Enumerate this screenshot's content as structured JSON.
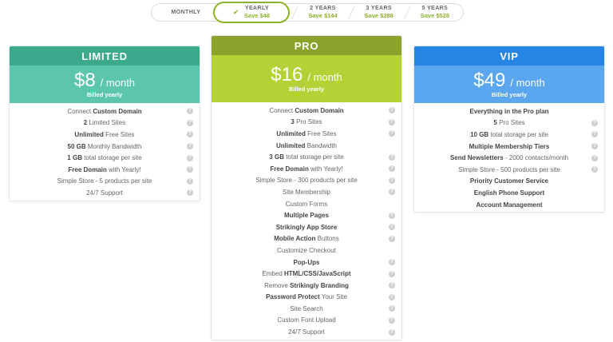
{
  "billing_toggle": {
    "options": [
      {
        "label": "MONTHLY",
        "save": ""
      },
      {
        "label": "YEARLY",
        "save": "Save $48",
        "selected": true
      },
      {
        "label": "2 YEARS",
        "save": "Save $144"
      },
      {
        "label": "3 YEARS",
        "save": "Save $288"
      },
      {
        "label": "5 YEARS",
        "save": "Save $528"
      }
    ],
    "check_icon": "✔",
    "accent_color": "#8bb22a"
  },
  "plans": [
    {
      "name": "LIMITED",
      "amount": "$8",
      "per": "/ month",
      "billed": "Billed yearly",
      "header_color": "#3aa98c",
      "price_color": "#5cc6ac",
      "features": [
        {
          "pre": "Connect ",
          "bold": "Custom Domain",
          "post": "",
          "help": true
        },
        {
          "pre": "",
          "bold": "2",
          "post": " Limited Sites",
          "help": true
        },
        {
          "pre": "",
          "bold": "Unlimited",
          "post": " Free Sites",
          "help": true
        },
        {
          "pre": "",
          "bold": "50 GB",
          "post": " Monthly Bandwidth",
          "help": true
        },
        {
          "pre": "",
          "bold": "1 GB",
          "post": " total storage per site",
          "help": true
        },
        {
          "pre": "",
          "bold": "Free Domain",
          "post": " with Yearly!",
          "help": true
        },
        {
          "pre": "Simple Store - 5 products per site",
          "bold": "",
          "post": "",
          "help": true
        },
        {
          "pre": "24/7 Support",
          "bold": "",
          "post": "",
          "help": true
        }
      ]
    },
    {
      "name": "PRO",
      "amount": "$16",
      "per": "/ month",
      "billed": "Billed yearly",
      "header_color": "#8aa32a",
      "price_color": "#b2d235",
      "features": [
        {
          "pre": "Connect ",
          "bold": "Custom Domain",
          "post": "",
          "help": true
        },
        {
          "pre": "",
          "bold": "3",
          "post": " Pro Sites",
          "help": true
        },
        {
          "pre": "",
          "bold": "Unlimited",
          "post": " Free Sites",
          "help": true
        },
        {
          "pre": "",
          "bold": "Unlimited",
          "post": " Bandwidth",
          "help": false
        },
        {
          "pre": "",
          "bold": "3 GB",
          "post": " total storage per site",
          "help": true
        },
        {
          "pre": "",
          "bold": "Free Domain",
          "post": " with Yearly!",
          "help": true
        },
        {
          "pre": "Simple Store - 300 products per site",
          "bold": "",
          "post": "",
          "help": true
        },
        {
          "pre": "Site Membership",
          "bold": "",
          "post": "",
          "help": true
        },
        {
          "pre": "Custom Forms",
          "bold": "",
          "post": "",
          "help": false
        },
        {
          "pre": "",
          "bold": "Multiple Pages",
          "post": "",
          "help": true
        },
        {
          "pre": "",
          "bold": "Strikingly App Store",
          "post": "",
          "help": true
        },
        {
          "pre": "",
          "bold": "Mobile Action",
          "post": " Buttons",
          "help": true
        },
        {
          "pre": "Customize Checkout",
          "bold": "",
          "post": "",
          "help": false
        },
        {
          "pre": "",
          "bold": "Pop-Ups",
          "post": "",
          "help": true
        },
        {
          "pre": "Embed ",
          "bold": "HTML/CSS/JavaScript",
          "post": "",
          "help": true
        },
        {
          "pre": "Remove ",
          "bold": "Strikingly Branding",
          "post": "",
          "help": true
        },
        {
          "pre": "",
          "bold": "Password Protect",
          "post": " Your Site",
          "help": true
        },
        {
          "pre": "Site Search",
          "bold": "",
          "post": "",
          "help": true
        },
        {
          "pre": "Custom Font Upload",
          "bold": "",
          "post": "",
          "help": true
        },
        {
          "pre": "24/7 Support",
          "bold": "",
          "post": "",
          "help": true
        }
      ]
    },
    {
      "name": "VIP",
      "amount": "$49",
      "per": "/ month",
      "billed": "Billed yearly",
      "header_color": "#2684e3",
      "price_color": "#5ba7ef",
      "features": [
        {
          "pre": "",
          "bold": "Everything in the Pro plan",
          "post": "",
          "help": false
        },
        {
          "pre": "",
          "bold": "5",
          "post": " Pro Sites",
          "help": true
        },
        {
          "pre": "",
          "bold": "10 GB",
          "post": " total storage per site",
          "help": true
        },
        {
          "pre": "",
          "bold": "Multiple Membership Tiers",
          "post": "",
          "help": true
        },
        {
          "pre": "",
          "bold": "Send Newsletters",
          "post": " - 2000 contacts/month",
          "help": true
        },
        {
          "pre": "Simple Store - 500 products per site",
          "bold": "",
          "post": "",
          "help": true
        },
        {
          "pre": "",
          "bold": "Priority Customer Service",
          "post": "",
          "help": false
        },
        {
          "pre": "",
          "bold": "English Phone Support",
          "post": "",
          "help": false
        },
        {
          "pre": "",
          "bold": "Account Management",
          "post": "",
          "help": false
        }
      ]
    }
  ],
  "help_icon": "?"
}
